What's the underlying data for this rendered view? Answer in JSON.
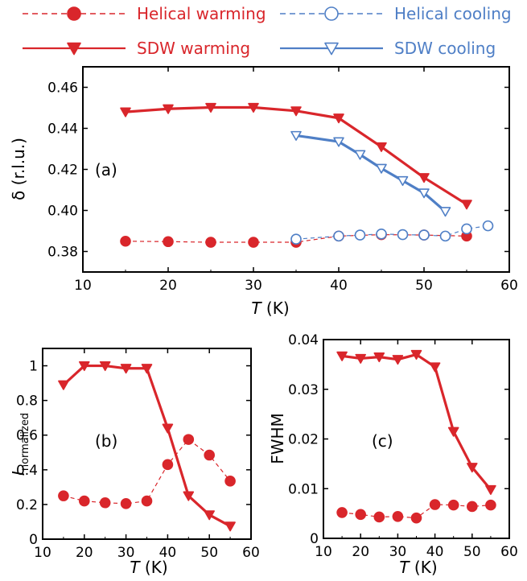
{
  "legend": {
    "items": [
      {
        "label": "Helical warming",
        "color": "#d9262b",
        "marker": "filled-circle",
        "line": "dashed"
      },
      {
        "label": "Helical cooling",
        "color": "#4f7fc6",
        "marker": "open-circle",
        "line": "dashed"
      },
      {
        "label": "SDW warming",
        "color": "#d9262b",
        "marker": "filled-triangle-down",
        "line": "solid"
      },
      {
        "label": "SDW cooling",
        "color": "#4f7fc6",
        "marker": "open-triangle-down",
        "line": "solid"
      }
    ]
  },
  "chart_data": [
    {
      "type": "line",
      "panel_label": "(a)",
      "xlabel": "T",
      "xlabel_unit": "(K)",
      "ylabel": "δ (r.l.u.)",
      "xlim": [
        10,
        60
      ],
      "ylim": [
        0.37,
        0.47
      ],
      "xticks": [
        10,
        20,
        30,
        40,
        50,
        60
      ],
      "yticks": [
        0.38,
        0.4,
        0.42,
        0.44,
        0.46
      ],
      "ytick_labels": [
        "0.38",
        "0.40",
        "0.42",
        "0.44",
        "0.46"
      ],
      "grid": false,
      "series": [
        {
          "name": "Helical warming",
          "color": "#d9262b",
          "marker": "filled-circle",
          "line": "dashed",
          "x": [
            15,
            20,
            25,
            30,
            35,
            40,
            45,
            50,
            55
          ],
          "y": [
            0.385,
            0.3848,
            0.3845,
            0.3845,
            0.3845,
            0.3875,
            0.3882,
            0.388,
            0.3875
          ]
        },
        {
          "name": "Helical cooling",
          "color": "#4f7fc6",
          "marker": "open-circle",
          "line": "dashed",
          "x": [
            35,
            40,
            42.5,
            45,
            47.5,
            50,
            52.5,
            55,
            57.5
          ],
          "y": [
            0.386,
            0.3875,
            0.388,
            0.3885,
            0.3882,
            0.388,
            0.3875,
            0.391,
            0.3925
          ]
        },
        {
          "name": "SDW warming",
          "color": "#d9262b",
          "marker": "filled-triangle-down",
          "line": "solid",
          "x": [
            15,
            20,
            25,
            30,
            35,
            40,
            45,
            50,
            55
          ],
          "y": [
            0.448,
            0.4495,
            0.4502,
            0.4502,
            0.4485,
            0.445,
            0.431,
            0.416,
            0.403
          ]
        },
        {
          "name": "SDW cooling",
          "color": "#4f7fc6",
          "marker": "open-triangle-down",
          "line": "solid",
          "x": [
            35,
            40,
            42.5,
            45,
            47.5,
            50,
            52.5
          ],
          "y": [
            0.4365,
            0.4335,
            0.4272,
            0.4205,
            0.4145,
            0.4085,
            0.3995
          ]
        }
      ]
    },
    {
      "type": "line",
      "panel_label": "(b)",
      "xlabel": "T",
      "xlabel_unit": "(K)",
      "ylabel": "I",
      "ylabel_sub": "normalized",
      "xlim": [
        10,
        60
      ],
      "ylim": [
        0,
        1.1
      ],
      "xticks": [
        10,
        20,
        30,
        40,
        50,
        60
      ],
      "yticks": [
        0,
        0.2,
        0.4,
        0.6,
        0.8,
        1
      ],
      "ytick_labels": [
        "0",
        "0.2",
        "0.4",
        "0.6",
        "0.8",
        "1"
      ],
      "grid": false,
      "series": [
        {
          "name": "Helical warming",
          "color": "#d9262b",
          "marker": "filled-circle",
          "line": "dashed",
          "x": [
            15,
            20,
            25,
            30,
            35,
            40,
            45,
            50,
            55
          ],
          "y": [
            0.25,
            0.22,
            0.21,
            0.205,
            0.22,
            0.43,
            0.575,
            0.485,
            0.335
          ]
        },
        {
          "name": "SDW warming",
          "color": "#d9262b",
          "marker": "filled-triangle-down",
          "line": "solid",
          "x": [
            15,
            20,
            25,
            30,
            35,
            40,
            45,
            50,
            55
          ],
          "y": [
            0.89,
            1.0,
            1.0,
            0.985,
            0.985,
            0.64,
            0.25,
            0.14,
            0.075
          ]
        }
      ]
    },
    {
      "type": "line",
      "panel_label": "(c)",
      "xlabel": "T",
      "xlabel_unit": "(K)",
      "ylabel": "FWHM",
      "xlim": [
        10,
        60
      ],
      "ylim": [
        0,
        0.04
      ],
      "xticks": [
        10,
        20,
        30,
        40,
        50,
        60
      ],
      "yticks": [
        0,
        0.01,
        0.02,
        0.03,
        0.04
      ],
      "ytick_labels": [
        "0",
        "0.01",
        "0.02",
        "0.03",
        "0.04"
      ],
      "grid": false,
      "series": [
        {
          "name": "Helical warming",
          "color": "#d9262b",
          "marker": "filled-circle",
          "line": "dashed",
          "x": [
            15,
            20,
            25,
            30,
            35,
            40,
            45,
            50,
            55
          ],
          "y": [
            0.0052,
            0.0048,
            0.0043,
            0.0044,
            0.0041,
            0.0068,
            0.0067,
            0.0064,
            0.0067
          ]
        },
        {
          "name": "SDW warming",
          "color": "#d9262b",
          "marker": "filled-triangle-down",
          "line": "solid",
          "x": [
            15,
            20,
            25,
            30,
            35,
            40,
            45,
            50,
            55
          ],
          "y": [
            0.0367,
            0.0362,
            0.0365,
            0.036,
            0.037,
            0.0345,
            0.0215,
            0.0143,
            0.0098
          ]
        }
      ]
    }
  ]
}
